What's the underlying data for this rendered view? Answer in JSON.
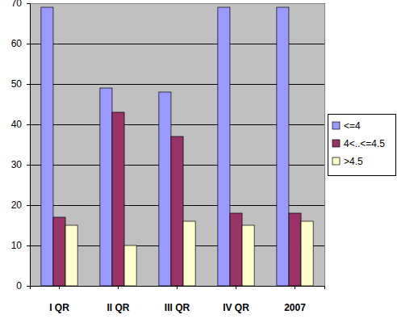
{
  "chart_data": {
    "type": "bar",
    "categories": [
      "I QR",
      "II QR",
      "III QR",
      "IV QR",
      "2007"
    ],
    "series": [
      {
        "name": "<=4",
        "color": "#9999ff",
        "values": [
          69,
          49,
          48,
          69,
          69
        ]
      },
      {
        "name": "4<..<=4.5",
        "color": "#993366",
        "values": [
          17,
          43,
          37,
          18,
          18
        ]
      },
      {
        "name": ">4.5",
        "color": "#ffffcc",
        "values": [
          15,
          10,
          16,
          15,
          16
        ]
      }
    ],
    "ylim": [
      0,
      70
    ],
    "yticks": [
      0,
      10,
      20,
      30,
      40,
      50,
      60,
      70
    ],
    "grid": true,
    "legend": "right"
  }
}
